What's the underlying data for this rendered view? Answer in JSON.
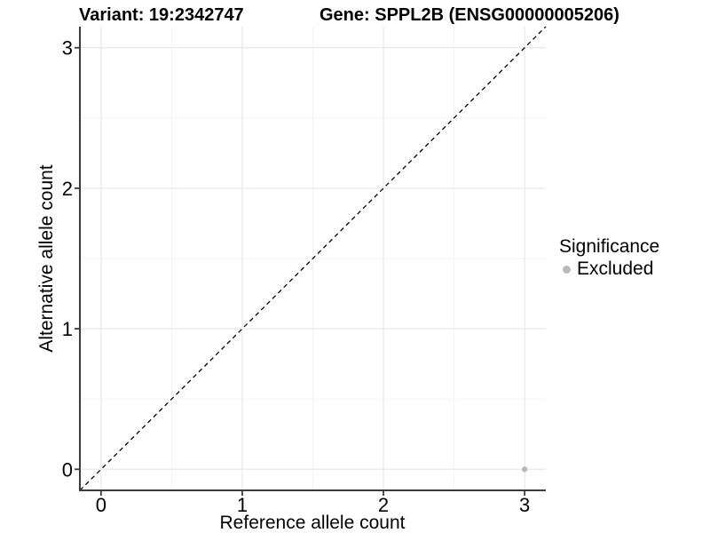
{
  "header": {
    "variant_title": "Variant: 19:2342747",
    "gene_title": "Gene: SPPL2B (ENSG00000005206)"
  },
  "legend": {
    "title": "Significance",
    "items": [
      {
        "label": "Excluded",
        "color": "#b9b9b9"
      }
    ]
  },
  "chart_data": {
    "type": "scatter",
    "title": "Variant: 19:2342747 | Gene: SPPL2B (ENSG00000005206)",
    "xlabel": "Reference allele count",
    "ylabel": "Alternative allele count",
    "xlim": [
      -0.15,
      3.15
    ],
    "ylim": [
      -0.15,
      3.15
    ],
    "x_ticks": [
      0,
      1,
      2,
      3
    ],
    "y_ticks": [
      0,
      1,
      2,
      3
    ],
    "x_minor_ticks": [
      0.5,
      1.5,
      2.5
    ],
    "y_minor_ticks": [
      0.5,
      1.5,
      2.5
    ],
    "grid": "major+minor",
    "legend_position": "right",
    "reference_line": {
      "label": "identity y = x",
      "style": "dashed",
      "x1": -0.15,
      "y1": -0.15,
      "x2": 3.15,
      "y2": 3.15
    },
    "series": [
      {
        "name": "Excluded",
        "color": "#b9b9b9",
        "points": [
          {
            "x": 3,
            "y": 0
          }
        ]
      }
    ],
    "colors": {
      "background": "#ffffff",
      "major_grid": "#e8e8e8",
      "minor_grid": "#f4f4f4",
      "axis_line": "#3c3c3c",
      "tick_mark": "#3c3c3c",
      "tick_label": "#000000",
      "reference_line": "#000000"
    }
  }
}
